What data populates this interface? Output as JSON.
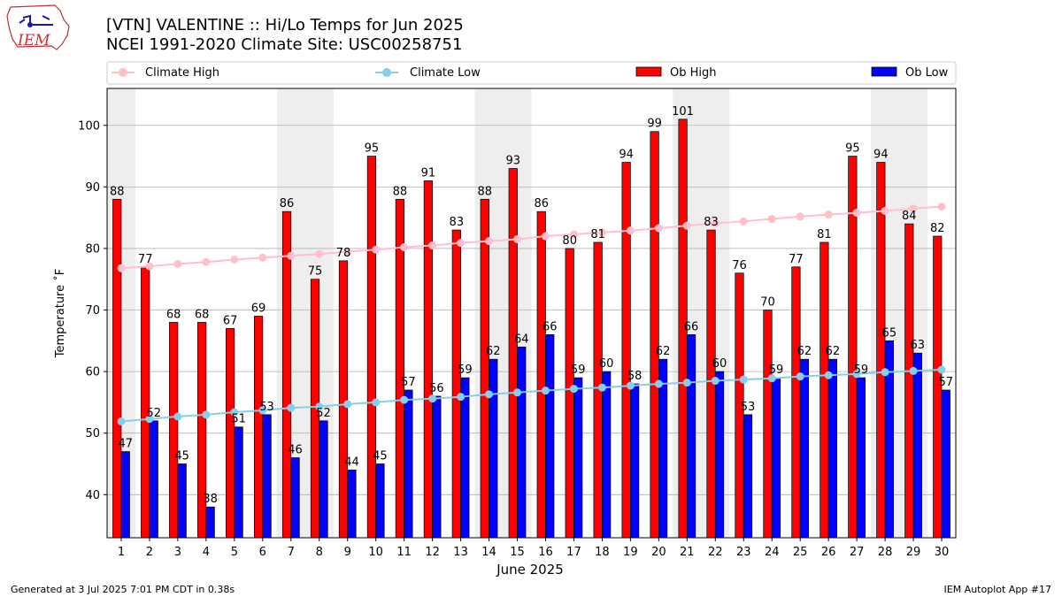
{
  "title_line1": "[VTN] VALENTINE :: Hi/Lo Temps for Jun 2025",
  "title_line2": "NCEI 1991-2020 Climate Site: USC00258751",
  "logo_text": "IEM",
  "footer_left": "Generated at 3 Jul 2025 7:01 PM CDT in 0.38s",
  "footer_right": "IEM Autoplot App #17",
  "colors": {
    "ob_high": "#ff0000",
    "ob_low": "#0000ff",
    "climate_high": "#ffc0cb",
    "climate_low": "#87ceeb",
    "weekend_shade": "#eeeeee",
    "grid": "#b0b0b0"
  },
  "legend": {
    "placement": "top, above plot",
    "items": [
      "Climate High",
      "Climate Low",
      "Ob High",
      "Ob Low"
    ]
  },
  "chart_data": {
    "type": "bar",
    "xlabel": "June 2025",
    "ylabel": "Temperature ˚F",
    "ylim": [
      33,
      106
    ],
    "yticks": [
      40,
      50,
      60,
      70,
      80,
      90,
      100
    ],
    "grid": "horizontal",
    "categories": [
      "1",
      "2",
      "3",
      "4",
      "5",
      "6",
      "7",
      "8",
      "9",
      "10",
      "11",
      "12",
      "13",
      "14",
      "15",
      "16",
      "17",
      "18",
      "19",
      "20",
      "21",
      "22",
      "23",
      "24",
      "25",
      "26",
      "27",
      "28",
      "29",
      "30"
    ],
    "shaded_days": [
      1,
      7,
      8,
      14,
      15,
      21,
      22,
      28,
      29
    ],
    "series": [
      {
        "name": "Ob High",
        "type": "bar",
        "values": [
          88,
          77,
          68,
          68,
          67,
          69,
          86,
          75,
          78,
          95,
          88,
          91,
          83,
          88,
          93,
          86,
          80,
          81,
          94,
          99,
          101,
          83,
          76,
          70,
          77,
          81,
          95,
          94,
          84,
          82
        ]
      },
      {
        "name": "Ob Low",
        "type": "bar",
        "values": [
          47,
          52,
          45,
          38,
          51,
          53,
          46,
          52,
          44,
          45,
          57,
          56,
          59,
          62,
          64,
          66,
          59,
          60,
          58,
          62,
          66,
          60,
          53,
          59,
          62,
          62,
          59,
          65,
          63,
          57
        ]
      },
      {
        "name": "Climate High",
        "type": "line",
        "values": [
          76.8,
          77.1,
          77.5,
          77.8,
          78.2,
          78.5,
          78.8,
          79.1,
          79.5,
          79.8,
          80.2,
          80.5,
          80.9,
          81.2,
          81.5,
          82.0,
          82.3,
          82.6,
          82.9,
          83.3,
          83.7,
          84.1,
          84.4,
          84.8,
          85.2,
          85.5,
          85.8,
          86.1,
          86.5,
          86.8
        ]
      },
      {
        "name": "Climate Low",
        "type": "line",
        "values": [
          51.9,
          52.3,
          52.7,
          53.0,
          53.4,
          53.7,
          54.1,
          54.3,
          54.7,
          55.0,
          55.4,
          55.6,
          55.9,
          56.3,
          56.6,
          56.9,
          57.2,
          57.4,
          57.7,
          58.0,
          58.2,
          58.5,
          58.7,
          58.9,
          59.2,
          59.4,
          59.6,
          59.9,
          60.1,
          60.3
        ]
      }
    ]
  }
}
